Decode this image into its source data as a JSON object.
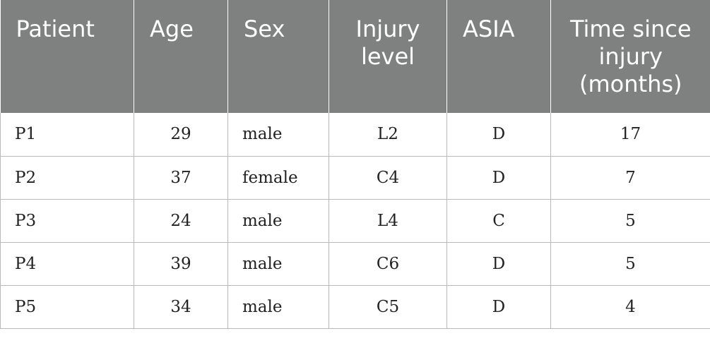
{
  "table": {
    "headers": [
      "Patient",
      "Age",
      "Sex",
      "Injury level",
      "ASIA",
      "Time since injury (months)"
    ],
    "rows": [
      [
        "P1",
        "29",
        "male",
        "L2",
        "D",
        "17"
      ],
      [
        "P2",
        "37",
        "female",
        "C4",
        "D",
        "7"
      ],
      [
        "P3",
        "24",
        "male",
        "L4",
        "C",
        "5"
      ],
      [
        "P4",
        "39",
        "male",
        "C6",
        "D",
        "5"
      ],
      [
        "P5",
        "34",
        "male",
        "C5",
        "D",
        "4"
      ]
    ]
  },
  "colors": {
    "header_background": "#7f8180",
    "header_text": "#ffffff",
    "grid_line": "#b9b9b9"
  }
}
